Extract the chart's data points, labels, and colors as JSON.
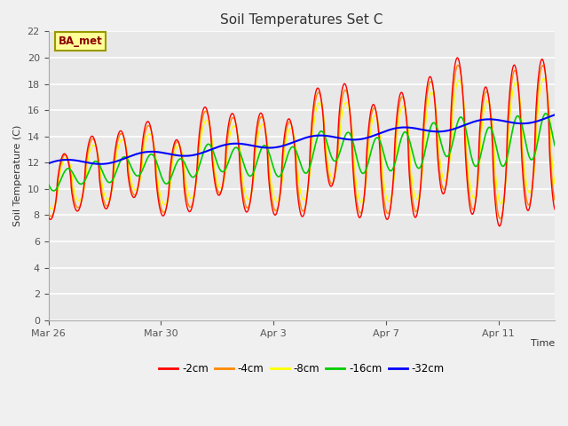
{
  "title": "Soil Temperatures Set C",
  "xlabel": "Time",
  "ylabel": "Soil Temperature (C)",
  "ylim": [
    0,
    22
  ],
  "yticks": [
    0,
    2,
    4,
    6,
    8,
    10,
    12,
    14,
    16,
    18,
    20,
    22
  ],
  "annotation_text": "BA_met",
  "line_colors": {
    "-2cm": "#ff0000",
    "-4cm": "#ff8800",
    "-8cm": "#ffff00",
    "-16cm": "#00cc00",
    "-32cm": "#0000ff"
  },
  "xtick_labels": [
    "Mar 26",
    "Mar 30",
    "Apr 3",
    "Apr 7",
    "Apr 11"
  ],
  "xtick_positions": [
    0,
    4,
    8,
    12,
    16
  ],
  "n_days": 18,
  "samples_per_day": 48,
  "base_start": 11.0,
  "base_end": 14.0,
  "amp_start": 2.5,
  "amp_end": 6.0
}
